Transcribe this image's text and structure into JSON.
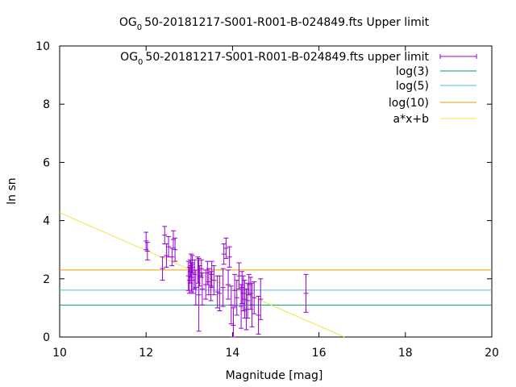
{
  "chart_data": {
    "type": "scatter",
    "title": {
      "prefix": "OG",
      "subscript": "0",
      "suffix": "50-20181217-S001-R001-B-024849.fts Upper limit"
    },
    "xlabel": "Magnitude [mag]",
    "ylabel": "ln sn",
    "xlim": [
      10,
      20
    ],
    "ylim": [
      0,
      10
    ],
    "xticks": [
      "10",
      "12",
      "14",
      "16",
      "18",
      "20"
    ],
    "yticks": [
      "0",
      "2",
      "4",
      "6",
      "8",
      "10"
    ],
    "grid": false,
    "legend_position": "top-right",
    "colors": {
      "points": "#9400d3",
      "log3": "#009e73",
      "log5": "#56b4e9",
      "log10": "#e69f00",
      "fit": "#f0e442"
    },
    "series": [
      {
        "name": {
          "prefix": "OG",
          "subscript": "0",
          "suffix": "50-20181217-S001-R001-B-024849.fts upper limit"
        },
        "kind": "errorbars",
        "x": [
          12.0,
          12.03,
          12.38,
          12.43,
          12.47,
          12.52,
          12.6,
          12.63,
          12.67,
          12.98,
          13.0,
          13.02,
          13.04,
          13.05,
          13.07,
          13.08,
          13.12,
          13.15,
          13.2,
          13.22,
          13.24,
          13.28,
          13.3,
          13.38,
          13.42,
          13.45,
          13.5,
          13.52,
          13.57,
          13.65,
          13.7,
          13.78,
          13.8,
          13.85,
          13.9,
          13.93,
          13.97,
          14.02,
          14.05,
          14.1,
          14.15,
          14.2,
          14.22,
          14.25,
          14.28,
          14.32,
          14.35,
          14.38,
          14.42,
          14.45,
          14.5,
          14.6,
          14.65,
          15.7
        ],
        "y": [
          3.3,
          2.95,
          2.35,
          3.5,
          2.8,
          3.1,
          2.75,
          3.35,
          3.0,
          2.1,
          1.95,
          2.25,
          2.45,
          2.05,
          2.5,
          1.95,
          2.15,
          1.7,
          2.3,
          1.45,
          2.1,
          2.35,
          1.65,
          1.8,
          2.2,
          1.9,
          1.75,
          2.15,
          1.95,
          1.55,
          1.5,
          1.7,
          2.85,
          3.05,
          1.8,
          2.75,
          1.1,
          0.4,
          1.6,
          1.35,
          2.1,
          1.05,
          1.7,
          1.5,
          1.3,
          0.95,
          1.25,
          1.8,
          1.5,
          1.1,
          1.35,
          0.75,
          1.3,
          1.5
        ],
        "yerr": [
          0.3,
          0.3,
          0.4,
          0.3,
          0.4,
          0.35,
          0.3,
          0.3,
          0.4,
          0.5,
          0.45,
          0.4,
          0.4,
          0.5,
          0.3,
          0.45,
          0.5,
          0.6,
          0.45,
          1.25,
          0.35,
          0.3,
          0.55,
          0.5,
          0.4,
          0.45,
          0.5,
          0.45,
          0.5,
          0.55,
          0.6,
          0.65,
          0.35,
          0.35,
          0.5,
          0.35,
          0.65,
          0.6,
          0.55,
          0.6,
          0.45,
          0.75,
          0.55,
          0.6,
          0.65,
          0.7,
          0.6,
          0.35,
          0.55,
          0.75,
          0.55,
          0.65,
          0.7,
          0.65
        ]
      },
      {
        "name": "log(3)",
        "kind": "hline",
        "y": 1.0986
      },
      {
        "name": "log(5)",
        "kind": "hline",
        "y": 1.6094
      },
      {
        "name": "log(10)",
        "kind": "hline",
        "y": 2.3026
      },
      {
        "name": "a*x+b",
        "kind": "line",
        "slope": -0.648,
        "intercept": 10.75
      }
    ]
  }
}
